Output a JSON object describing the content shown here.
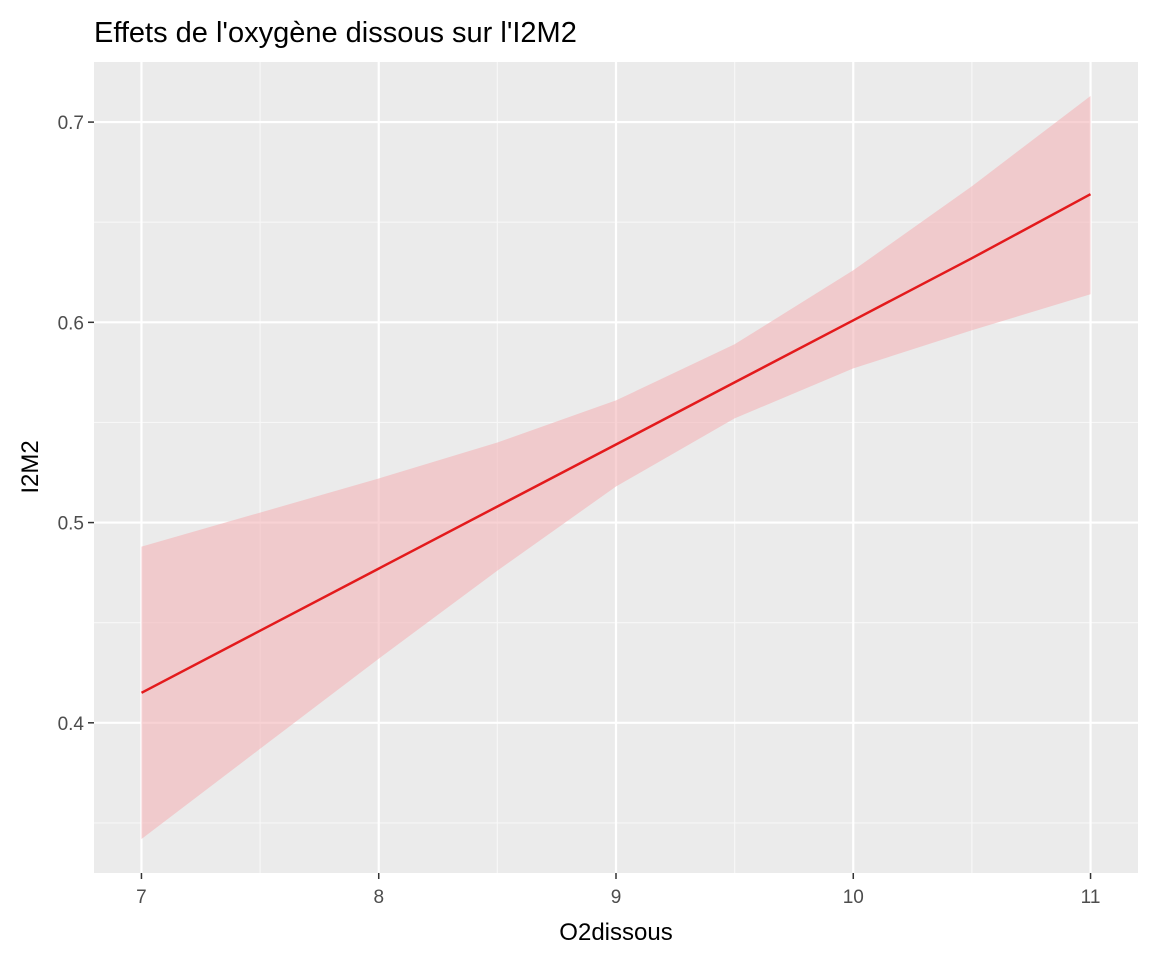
{
  "chart_data": {
    "type": "line",
    "title": "Effets de l'oxygène dissous  sur l'I2M2",
    "xlabel": "O2dissous",
    "ylabel": "I2M2",
    "xlim": [
      6.8,
      11.2
    ],
    "ylim": [
      0.325,
      0.73
    ],
    "x_ticks": [
      7,
      8,
      9,
      10,
      11
    ],
    "x_tick_labels": [
      "7",
      "8",
      "9",
      "10",
      "11"
    ],
    "y_ticks": [
      0.4,
      0.5,
      0.6,
      0.7
    ],
    "y_tick_labels": [
      "0.4",
      "0.5",
      "0.6",
      "0.7"
    ],
    "grid": true,
    "series": [
      {
        "x": [
          7,
          7.5,
          8,
          8.5,
          9,
          9.5,
          10,
          10.5,
          11
        ],
        "y": [
          0.415,
          0.446,
          0.477,
          0.508,
          0.539,
          0.57,
          0.601,
          0.632,
          0.664
        ],
        "lower": [
          0.342,
          0.387,
          0.432,
          0.476,
          0.518,
          0.552,
          0.577,
          0.596,
          0.614
        ],
        "upper": [
          0.488,
          0.505,
          0.522,
          0.54,
          0.561,
          0.589,
          0.626,
          0.668,
          0.713
        ],
        "line_color": "#e31a1c",
        "band_color": "#f4b4b8"
      }
    ],
    "colors": {
      "panel_background": "#ebebeb",
      "grid_major": "#ffffff",
      "grid_minor": "#f7f7f7",
      "tick_mark": "#333333"
    }
  }
}
